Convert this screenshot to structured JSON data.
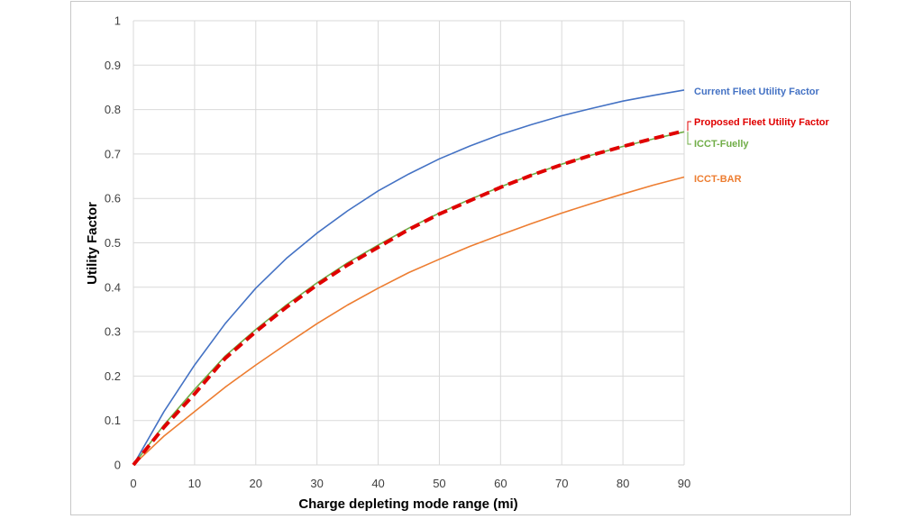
{
  "chart_data": {
    "type": "line",
    "xlabel": "Charge depleting mode range (mi)",
    "ylabel": "Utility Factor",
    "xlim": [
      0,
      90
    ],
    "ylim": [
      0,
      1
    ],
    "x_ticks": [
      "0",
      "10",
      "20",
      "30",
      "40",
      "50",
      "60",
      "70",
      "80",
      "90"
    ],
    "y_ticks": [
      "0",
      "0.1",
      "0.2",
      "0.3",
      "0.4",
      "0.5",
      "0.6",
      "0.7",
      "0.8",
      "0.9",
      "1"
    ],
    "grid": true,
    "legend_placement": "right (inline labels at line ends)",
    "x": [
      0,
      5,
      10,
      15,
      20,
      25,
      30,
      35,
      40,
      45,
      50,
      55,
      60,
      65,
      70,
      75,
      80,
      85,
      90
    ],
    "series": [
      {
        "name": "Current Fleet Utility Factor",
        "color": "#4472c4",
        "style": "solid",
        "values": [
          0,
          0.12,
          0.225,
          0.318,
          0.398,
          0.465,
          0.522,
          0.572,
          0.617,
          0.655,
          0.689,
          0.718,
          0.744,
          0.766,
          0.786,
          0.803,
          0.819,
          0.832,
          0.844
        ]
      },
      {
        "name": "Proposed Fleet Utility Factor",
        "color": "#e00000",
        "style": "dashed",
        "values": [
          0,
          0.085,
          0.16,
          0.24,
          0.3,
          0.355,
          0.405,
          0.45,
          0.49,
          0.53,
          0.565,
          0.595,
          0.625,
          0.652,
          0.676,
          0.698,
          0.717,
          0.735,
          0.752
        ]
      },
      {
        "name": "ICCT-Fuelly",
        "color": "#70ad47",
        "style": "solid",
        "values": [
          0,
          0.09,
          0.17,
          0.245,
          0.305,
          0.36,
          0.41,
          0.455,
          0.495,
          0.533,
          0.567,
          0.598,
          0.626,
          0.653,
          0.677,
          0.698,
          0.717,
          0.734,
          0.75
        ]
      },
      {
        "name": "ICCT-BAR",
        "color": "#ed7d31",
        "style": "solid",
        "values": [
          0,
          0.065,
          0.12,
          0.175,
          0.225,
          0.272,
          0.318,
          0.36,
          0.398,
          0.433,
          0.463,
          0.492,
          0.518,
          0.543,
          0.567,
          0.589,
          0.61,
          0.63,
          0.648
        ]
      }
    ]
  }
}
